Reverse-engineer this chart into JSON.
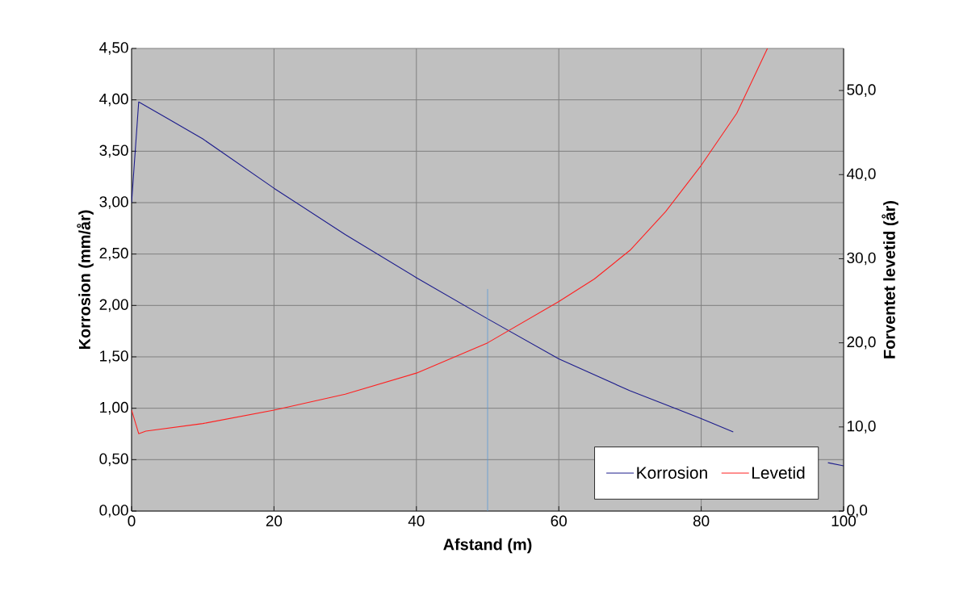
{
  "chart_data": {
    "type": "line",
    "xlabel": "Afstand (m)",
    "ylabel": "Korrosion (mm/år)",
    "y2label": "Forventet levetid (år)",
    "series": [
      {
        "name": "Korrosion",
        "color": "#1c1c8c",
        "x": [
          0,
          1,
          5,
          10,
          20,
          30,
          40,
          50,
          60,
          70,
          80,
          84.5,
          86,
          97.8,
          100
        ],
        "values": [
          3.0,
          3.98,
          3.82,
          3.62,
          3.14,
          2.69,
          2.27,
          1.87,
          1.48,
          1.17,
          0.9,
          0.77,
          null,
          0.47,
          0.44
        ]
      },
      {
        "name": "Levetid",
        "color": "#ff2020",
        "axis": "y2",
        "x": [
          0,
          1,
          2,
          10,
          20,
          30,
          40,
          50,
          60,
          65,
          70,
          75,
          80,
          85,
          89.3
        ],
        "values": [
          12.0,
          9.2,
          9.5,
          10.4,
          12.0,
          13.9,
          16.4,
          20.0,
          24.9,
          27.6,
          31.0,
          35.6,
          41.1,
          47.3,
          55.0
        ]
      }
    ],
    "xlim": [
      0,
      100
    ],
    "xticks": [
      0,
      20,
      40,
      60,
      80,
      100
    ],
    "ylim": [
      0,
      4.5
    ],
    "yticks": [
      {
        "value": 0,
        "label": "0,00"
      },
      {
        "value": 0.5,
        "label": "0,50"
      },
      {
        "value": 1,
        "label": "1,00"
      },
      {
        "value": 1.5,
        "label": "1,50"
      },
      {
        "value": 2,
        "label": "2,00"
      },
      {
        "value": 2.5,
        "label": "2,50"
      },
      {
        "value": 3,
        "label": "3,00"
      },
      {
        "value": 3.5,
        "label": "3,50"
      },
      {
        "value": 4,
        "label": "4,00"
      },
      {
        "value": 4.5,
        "label": "4,50"
      }
    ],
    "y2lim": [
      0,
      55
    ],
    "y2ticks": [
      {
        "value": 0,
        "label": "0,0"
      },
      {
        "value": 10,
        "label": "10,0"
      },
      {
        "value": 20,
        "label": "20,0"
      },
      {
        "value": 30,
        "label": "30,0"
      },
      {
        "value": 40,
        "label": "40,0"
      },
      {
        "value": 50,
        "label": "50,0"
      }
    ],
    "ref_lines": [
      {
        "axis": "x",
        "value": 50,
        "color": "#5b9bd5"
      }
    ],
    "grid": true,
    "legend": "bottom right"
  }
}
